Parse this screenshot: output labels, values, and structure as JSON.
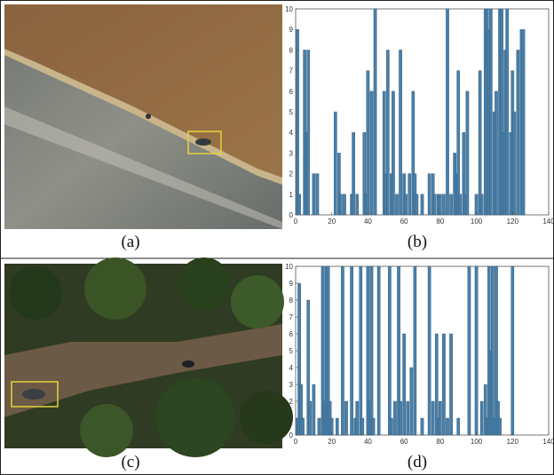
{
  "captions": [
    "(a)",
    "(b)",
    "(c)",
    "(d)"
  ],
  "chart_data": [
    {
      "type": "bar",
      "color": "#4a7fa8",
      "x": [
        1,
        2,
        5,
        6,
        7,
        10,
        12,
        22,
        24,
        25,
        27,
        31,
        32,
        34,
        38,
        39,
        40,
        42,
        44,
        49,
        50,
        51,
        53,
        54,
        56,
        58,
        60,
        61,
        63,
        65,
        66,
        67,
        70,
        74,
        76,
        77,
        79,
        80,
        82,
        84,
        86,
        88,
        89,
        90,
        91,
        93,
        94,
        95,
        100,
        102,
        103,
        105,
        106,
        107,
        108,
        110,
        111,
        113,
        114,
        115,
        116,
        117,
        119,
        120,
        121,
        123,
        125,
        126
      ],
      "values": [
        9,
        1,
        8,
        4,
        8,
        2,
        2,
        5,
        3,
        1,
        1,
        1,
        4,
        1,
        4,
        1,
        7,
        6,
        10,
        6,
        2,
        8,
        2,
        6,
        1,
        8,
        2,
        1,
        2,
        6,
        2,
        1,
        1,
        2,
        2,
        1,
        1,
        1,
        1,
        10,
        1,
        3,
        2,
        7,
        1,
        4,
        1,
        6,
        1,
        7,
        1,
        10,
        10,
        9,
        10,
        5,
        6,
        10,
        10,
        4,
        8,
        10,
        4,
        7,
        5,
        8,
        9,
        9
      ],
      "xlim": [
        0,
        140
      ],
      "ylim": [
        0,
        10
      ],
      "xticks": [
        0,
        20,
        40,
        60,
        80,
        100,
        120,
        140
      ],
      "yticks": [
        0,
        1,
        2,
        3,
        4,
        5,
        6,
        7,
        8,
        9,
        10
      ]
    },
    {
      "type": "bar",
      "color": "#4a7fa8",
      "x": [
        1,
        2,
        3,
        4,
        7,
        8,
        10,
        13,
        15,
        16,
        17,
        18,
        19,
        20,
        23,
        26,
        28,
        31,
        33,
        34,
        36,
        37,
        40,
        41,
        42,
        43,
        46,
        52,
        53,
        55,
        57,
        58,
        60,
        62,
        64,
        66,
        70,
        74,
        76,
        78,
        79,
        80,
        82,
        84,
        86,
        90,
        96,
        100,
        103,
        105,
        106,
        107,
        108,
        109,
        110,
        111,
        112,
        113,
        120
      ],
      "values": [
        1,
        9,
        3,
        1,
        8,
        2,
        3,
        1,
        10,
        2,
        10,
        10,
        2,
        1,
        1,
        10,
        2,
        10,
        1,
        2,
        10,
        1,
        10,
        2,
        10,
        1,
        10,
        10,
        1,
        2,
        10,
        2,
        6,
        2,
        4,
        10,
        1,
        10,
        2,
        6,
        1,
        2,
        6,
        1,
        6,
        1,
        10,
        10,
        2,
        3,
        1,
        10,
        5,
        10,
        1,
        10,
        2,
        1,
        10
      ],
      "xlim": [
        0,
        140
      ],
      "ylim": [
        0,
        10
      ],
      "xticks": [
        0,
        20,
        40,
        60,
        80,
        100,
        120,
        140
      ],
      "yticks": [
        0,
        1,
        2,
        3,
        4,
        5,
        6,
        7,
        8,
        9,
        10
      ]
    }
  ]
}
